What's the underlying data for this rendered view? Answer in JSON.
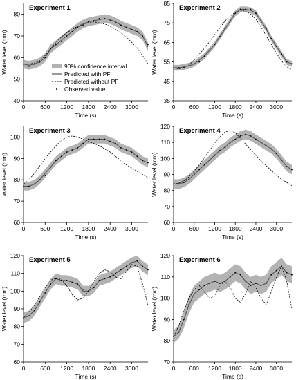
{
  "figure": {
    "legend": {
      "ci_label": "90% confidence interval",
      "pf_label": "Predicted with PF",
      "nopf_label": "Predicted without PF",
      "obs_label": "Observed value"
    }
  },
  "colors": {
    "band": "#b3b3b3",
    "pf_line": "#555555",
    "nopf_line": "#000000",
    "observed": "#000000",
    "axis": "#000000"
  },
  "chart_data": [
    {
      "type": "line",
      "title": "Experiment 1",
      "xlabel": "Time (s)",
      "ylabel": "Water level (mm)",
      "xlim": [
        0,
        3450
      ],
      "ylim": [
        40,
        85
      ],
      "xticks": [
        0,
        600,
        1200,
        1800,
        2400,
        3000
      ],
      "yticks": [
        40,
        50,
        60,
        70,
        80
      ],
      "grid": false,
      "legend_position": "lower-left",
      "x": [
        0,
        150,
        300,
        450,
        600,
        750,
        900,
        1050,
        1200,
        1350,
        1500,
        1650,
        1800,
        1950,
        2100,
        2250,
        2400,
        2550,
        2700,
        2850,
        3000,
        3150,
        3300,
        3450
      ],
      "series": [
        {
          "name": "Predicted with PF",
          "values": [
            57,
            56.5,
            57,
            58,
            60,
            64,
            66,
            68,
            70,
            72,
            74,
            75.5,
            76.5,
            77,
            77.5,
            78,
            77.5,
            76.5,
            75,
            74,
            73,
            72,
            70,
            65
          ]
        },
        {
          "name": "Predicted without PF",
          "values": [
            57,
            57,
            57.5,
            58.5,
            61,
            64,
            67,
            69.5,
            71.5,
            73,
            74.5,
            75.5,
            76,
            76.5,
            76,
            75.5,
            74.5,
            73,
            71.5,
            69.5,
            67,
            64.5,
            61,
            57
          ]
        },
        {
          "name": "Observed value",
          "values": [
            57,
            56,
            57,
            58,
            60,
            64,
            66,
            67.5,
            70,
            72,
            74,
            75,
            76.5,
            77,
            78,
            78,
            77,
            76,
            75,
            74,
            73,
            72,
            70,
            66
          ]
        }
      ],
      "ci_band": {
        "lower": [
          55,
          54.5,
          55,
          56,
          58,
          62,
          64,
          66,
          68,
          70,
          72,
          73.5,
          74.5,
          75,
          75.5,
          76,
          75.5,
          74.5,
          73,
          72,
          71,
          70,
          68,
          63
        ],
        "upper": [
          59,
          58.5,
          59,
          60,
          62,
          66,
          68,
          70,
          72,
          74,
          76,
          77.5,
          78.5,
          79,
          79.5,
          80,
          79.5,
          78.5,
          77,
          76,
          75,
          74,
          72,
          67
        ]
      }
    },
    {
      "type": "line",
      "title": "Experiment 2",
      "xlabel": "Time (s)",
      "ylabel": "Water level (mm)",
      "xlim": [
        0,
        3450
      ],
      "ylim": [
        35,
        85
      ],
      "xticks": [
        0,
        600,
        1200,
        1800,
        2400,
        3000
      ],
      "yticks": [
        35,
        45,
        55,
        65,
        75,
        85
      ],
      "grid": false,
      "x": [
        0,
        150,
        300,
        450,
        600,
        750,
        900,
        1050,
        1200,
        1350,
        1500,
        1650,
        1800,
        1950,
        2100,
        2250,
        2400,
        2550,
        2700,
        2850,
        3000,
        3150,
        3300,
        3450
      ],
      "series": [
        {
          "name": "Predicted with PF",
          "values": [
            52,
            52,
            52.5,
            53,
            54,
            56,
            58,
            61,
            64,
            68,
            72,
            76,
            80,
            82,
            82,
            81.5,
            80,
            76,
            72,
            67,
            63,
            59,
            55,
            54
          ]
        },
        {
          "name": "Predicted without PF",
          "values": [
            52,
            51.5,
            52,
            53.5,
            56,
            59,
            62,
            65.5,
            69,
            72.5,
            76,
            78.5,
            80.5,
            81.5,
            81,
            79.5,
            77,
            73,
            68.5,
            64,
            59.5,
            55.5,
            52.5,
            51
          ]
        },
        {
          "name": "Observed value",
          "values": [
            52,
            52,
            52,
            53,
            54,
            55,
            58,
            61,
            64,
            68,
            72,
            76,
            80,
            82,
            82,
            82,
            80,
            76,
            72,
            67,
            63,
            59,
            55,
            54
          ]
        }
      ],
      "ci_band": {
        "lower": [
          50.5,
          50.5,
          51,
          51.5,
          52.5,
          54.5,
          56.5,
          59.5,
          62.5,
          66.5,
          70.5,
          74.5,
          78.5,
          80.5,
          80.5,
          80,
          78.5,
          74.5,
          70.5,
          65.5,
          61.5,
          57.5,
          53.5,
          52.5
        ],
        "upper": [
          53.5,
          53.5,
          54,
          54.5,
          55.5,
          57.5,
          59.5,
          62.5,
          65.5,
          69.5,
          73.5,
          77.5,
          81.5,
          83.5,
          83.5,
          83,
          81.5,
          77.5,
          73.5,
          68.5,
          64.5,
          60.5,
          56.5,
          55.5
        ]
      }
    },
    {
      "type": "line",
      "title": "Experiment 3",
      "xlabel": "Time (s)",
      "ylabel": "water level (mm)",
      "xlim": [
        0,
        3450
      ],
      "ylim": [
        60,
        105
      ],
      "xticks": [
        0,
        600,
        1200,
        1800,
        2400,
        3000
      ],
      "yticks": [
        60,
        70,
        80,
        90,
        100
      ],
      "grid": false,
      "x": [
        0,
        150,
        300,
        450,
        600,
        750,
        900,
        1050,
        1200,
        1350,
        1500,
        1650,
        1800,
        1950,
        2100,
        2250,
        2400,
        2550,
        2700,
        2850,
        3000,
        3150,
        3300,
        3450
      ],
      "series": [
        {
          "name": "Predicted with PF",
          "values": [
            77,
            77,
            78,
            80,
            83,
            86,
            89,
            91,
            93,
            94,
            95,
            97,
            99,
            99,
            99,
            99,
            98,
            97,
            95,
            94,
            93,
            91,
            89,
            88
          ]
        },
        {
          "name": "Predicted without PF",
          "values": [
            78,
            80,
            83,
            86.5,
            90,
            93,
            96,
            98.5,
            100,
            100.5,
            100,
            99,
            98,
            97,
            96,
            94.5,
            93,
            91,
            89,
            87,
            85.5,
            84,
            82.5,
            81
          ]
        },
        {
          "name": "Observed value",
          "values": [
            77,
            77,
            78,
            80,
            82,
            86,
            89,
            91,
            93,
            94,
            95,
            97,
            99,
            99,
            99,
            99,
            98,
            97,
            95,
            94,
            93,
            91,
            89,
            88
          ]
        }
      ],
      "ci_band": {
        "lower": [
          75,
          75,
          76,
          78,
          81,
          84,
          87,
          89,
          91,
          92,
          93,
          95,
          97,
          97,
          97,
          97,
          96,
          95,
          93,
          92,
          91,
          89,
          87,
          86
        ],
        "upper": [
          79,
          79,
          80,
          82,
          85,
          88,
          91,
          93,
          95,
          96,
          97,
          99,
          101,
          101,
          101,
          101,
          100,
          99,
          97,
          96,
          95,
          93,
          91,
          90
        ]
      }
    },
    {
      "type": "line",
      "title": "Experiment 4",
      "xlabel": "Time (s)",
      "ylabel": "Water level (mm)",
      "xlim": [
        0,
        3450
      ],
      "ylim": [
        60,
        120
      ],
      "xticks": [
        0,
        600,
        1200,
        1800,
        2400,
        3000
      ],
      "yticks": [
        60,
        70,
        80,
        90,
        100,
        110,
        120
      ],
      "grid": false,
      "x": [
        0,
        150,
        300,
        450,
        600,
        750,
        900,
        1050,
        1200,
        1350,
        1500,
        1650,
        1800,
        1950,
        2100,
        2250,
        2400,
        2550,
        2700,
        2850,
        3000,
        3150,
        3300,
        3450
      ],
      "series": [
        {
          "name": "Predicted with PF",
          "values": [
            84,
            84,
            85,
            87,
            90,
            93,
            96,
            99,
            102,
            105,
            107,
            110,
            112,
            114,
            115,
            114,
            112,
            110,
            108,
            106,
            103,
            99,
            95,
            93
          ]
        },
        {
          "name": "Predicted without PF",
          "values": [
            84,
            84.5,
            86,
            88.5,
            92,
            96,
            100.5,
            105,
            109.5,
            113.5,
            116.5,
            117.5,
            116,
            112.5,
            109,
            105.5,
            102,
            98.5,
            95.5,
            92.5,
            89.5,
            87,
            85,
            83
          ]
        },
        {
          "name": "Observed value",
          "values": [
            84,
            84,
            85,
            87,
            90,
            93,
            96,
            99,
            102,
            105,
            107,
            110,
            112,
            114,
            115,
            114,
            112,
            110,
            108,
            106,
            103,
            99,
            95,
            93
          ]
        }
      ],
      "ci_band": {
        "lower": [
          81,
          81,
          82,
          84,
          87,
          90,
          93,
          96,
          99,
          102,
          104,
          107,
          109,
          111,
          112,
          111,
          109,
          107,
          105,
          103,
          100,
          96,
          92,
          90
        ],
        "upper": [
          87,
          87,
          88,
          90,
          93,
          96,
          99,
          102,
          105,
          108,
          110,
          113,
          115,
          117,
          118,
          117,
          115,
          113,
          111,
          109,
          106,
          102,
          98,
          96
        ]
      }
    },
    {
      "type": "line",
      "title": "Experiment 5",
      "xlabel": "Time (s)",
      "ylabel": "Water level (mm)",
      "xlim": [
        0,
        3450
      ],
      "ylim": [
        60,
        120
      ],
      "xticks": [
        0,
        600,
        1200,
        1800,
        2400,
        3000
      ],
      "yticks": [
        60,
        70,
        80,
        90,
        100,
        110,
        120
      ],
      "grid": false,
      "x": [
        0,
        150,
        300,
        450,
        600,
        750,
        900,
        1050,
        1200,
        1350,
        1500,
        1650,
        1800,
        1950,
        2100,
        2250,
        2400,
        2550,
        2700,
        2850,
        3000,
        3150,
        3300,
        3450
      ],
      "series": [
        {
          "name": "Predicted with PF",
          "values": [
            85,
            86,
            89,
            94,
            99,
            104,
            107,
            106,
            106,
            105,
            104,
            100,
            100,
            102,
            106,
            107,
            108,
            110,
            112,
            114,
            116,
            117,
            114,
            112
          ]
        },
        {
          "name": "Predicted without PF",
          "values": [
            85,
            88,
            92,
            97,
            102,
            106,
            107.5,
            106.5,
            103,
            98,
            95,
            96,
            100,
            105.5,
            110,
            112,
            111,
            108,
            107,
            111,
            115,
            114,
            104,
            92
          ]
        },
        {
          "name": "Observed value",
          "values": [
            85,
            86,
            89,
            94,
            99,
            104,
            107,
            106,
            106,
            105,
            104,
            101,
            100,
            102,
            106,
            107,
            108,
            110,
            112,
            114,
            116,
            117,
            114,
            112
          ]
        }
      ],
      "ci_band": {
        "lower": [
          82,
          83,
          86,
          91,
          96,
          101,
          104,
          103,
          103,
          102,
          101,
          97,
          97,
          99,
          103,
          104,
          105,
          107,
          109,
          111,
          113,
          114,
          111,
          109
        ],
        "upper": [
          88,
          89,
          92,
          97,
          102,
          107,
          110,
          109,
          109,
          108,
          107,
          103,
          103,
          105,
          109,
          110,
          111,
          113,
          115,
          117,
          119,
          120,
          117,
          115
        ]
      }
    },
    {
      "type": "line",
      "title": "Experiment 6",
      "xlabel": "Time (s)",
      "ylabel": "Water level (mm)",
      "xlim": [
        0,
        3450
      ],
      "ylim": [
        70,
        120
      ],
      "xticks": [
        0,
        600,
        1200,
        1800,
        2400,
        3000
      ],
      "yticks": [
        70,
        80,
        90,
        100,
        110,
        120
      ],
      "grid": false,
      "x": [
        0,
        150,
        300,
        450,
        600,
        750,
        900,
        1050,
        1200,
        1350,
        1500,
        1650,
        1800,
        1950,
        2100,
        2250,
        2400,
        2550,
        2700,
        2850,
        3000,
        3150,
        3300,
        3450
      ],
      "series": [
        {
          "name": "Predicted with PF",
          "values": [
            82,
            84,
            90,
            97,
            102,
            104,
            106,
            107,
            108,
            107,
            108,
            110,
            112,
            111,
            108,
            106,
            107,
            106,
            107,
            111,
            113,
            115,
            112,
            111
          ]
        },
        {
          "name": "Predicted without PF",
          "values": [
            82,
            87,
            94,
            100,
            104,
            106,
            103,
            100,
            101,
            106,
            108,
            105,
            100,
            98,
            102,
            108,
            105,
            100,
            97,
            103,
            110,
            115,
            108,
            95
          ]
        },
        {
          "name": "Observed value",
          "values": [
            82,
            84,
            90,
            97,
            102,
            104,
            106,
            107,
            108,
            107,
            108,
            110,
            112,
            111,
            108,
            106,
            107,
            106,
            107,
            111,
            113,
            115,
            112,
            111
          ]
        }
      ],
      "ci_band": {
        "lower": [
          79,
          81,
          86,
          93,
          98,
          100,
          102,
          103,
          104,
          103,
          104,
          106,
          108,
          107,
          104,
          102,
          103,
          102,
          103,
          107,
          109,
          111,
          108,
          107
        ],
        "upper": [
          85,
          87,
          94,
          101,
          106,
          108,
          110,
          111,
          112,
          111,
          112,
          114,
          116,
          115,
          112,
          110,
          111,
          110,
          111,
          115,
          117,
          119,
          116,
          115
        ]
      }
    }
  ]
}
